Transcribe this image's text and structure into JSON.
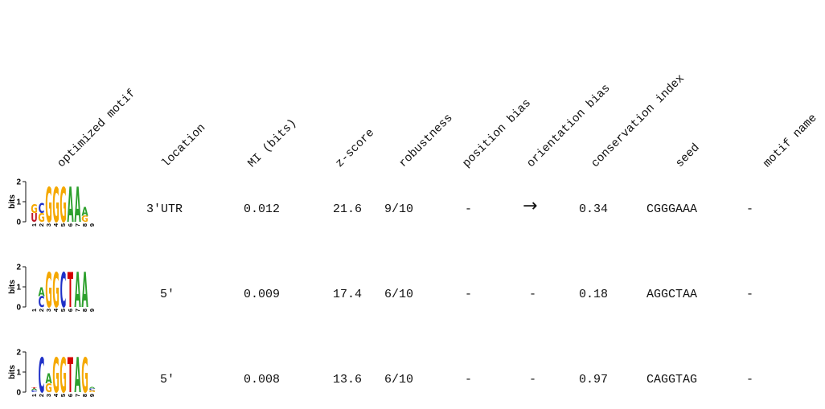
{
  "headers": [
    "optimized motif",
    "location",
    "MI (bits)",
    "z-score",
    "robustness",
    "position bias",
    "orientation bias",
    "conservation index",
    "seed",
    "motif name"
  ],
  "logo_axis": {
    "ylabel": "bits",
    "ticks": [
      "2",
      "1",
      "0"
    ]
  },
  "nucleotide_colors": {
    "A": "#2ca02c",
    "C": "#1f30c8",
    "G": "#f5a800",
    "T": "#d40000",
    "U": "#c0182a"
  },
  "rows": [
    {
      "location": "3'UTR",
      "mi": "0.012",
      "zscore": "21.6",
      "robustness": "9/10",
      "position_bias": "-",
      "orientation_bias": "→",
      "conservation": "0.34",
      "seed": "CGGGAAA",
      "motif_name": "-",
      "logo": [
        [
          {
            "b": "U",
            "h": 0.45
          },
          {
            "b": "G",
            "h": 0.45
          }
        ],
        [
          {
            "b": "G",
            "h": 0.45
          },
          {
            "b": "C",
            "h": 0.5
          }
        ],
        [
          {
            "b": "G",
            "h": 1.75
          }
        ],
        [
          {
            "b": "G",
            "h": 1.75
          }
        ],
        [
          {
            "b": "G",
            "h": 1.75
          }
        ],
        [
          {
            "b": "A",
            "h": 1.75
          }
        ],
        [
          {
            "b": "A",
            "h": 1.75
          }
        ],
        [
          {
            "b": "G",
            "h": 0.3
          },
          {
            "b": "A",
            "h": 0.45
          }
        ],
        []
      ],
      "positions": [
        "1",
        "2",
        "3",
        "4",
        "5",
        "6",
        "7",
        "8",
        "9"
      ]
    },
    {
      "location": "5'",
      "mi": "0.009",
      "zscore": "17.4",
      "robustness": "6/10",
      "position_bias": "-",
      "orientation_bias": "-",
      "conservation": "0.18",
      "seed": "AGGCTAA",
      "motif_name": "-",
      "logo": [
        [],
        [
          {
            "b": "C",
            "h": 0.55
          },
          {
            "b": "A",
            "h": 0.45
          }
        ],
        [
          {
            "b": "G",
            "h": 1.75
          }
        ],
        [
          {
            "b": "G",
            "h": 1.75
          }
        ],
        [
          {
            "b": "C",
            "h": 1.75
          }
        ],
        [
          {
            "b": "T",
            "h": 1.75
          }
        ],
        [
          {
            "b": "A",
            "h": 1.75
          }
        ],
        [
          {
            "b": "A",
            "h": 1.75
          }
        ],
        []
      ],
      "positions": [
        "1",
        "2",
        "3",
        "4",
        "5",
        "6",
        "7",
        "8",
        "9"
      ]
    },
    {
      "location": "5'",
      "mi": "0.008",
      "zscore": "13.6",
      "robustness": "6/10",
      "position_bias": "-",
      "orientation_bias": "-",
      "conservation": "0.97",
      "seed": "CAGGTAG",
      "motif_name": "-",
      "logo": [
        [
          {
            "b": "C",
            "h": 0.1
          },
          {
            "b": "A",
            "h": 0.08
          },
          {
            "b": "T",
            "h": 0.06
          }
        ],
        [
          {
            "b": "C",
            "h": 1.75
          }
        ],
        [
          {
            "b": "G",
            "h": 0.45
          },
          {
            "b": "A",
            "h": 0.5
          }
        ],
        [
          {
            "b": "G",
            "h": 1.75
          }
        ],
        [
          {
            "b": "G",
            "h": 1.75
          }
        ],
        [
          {
            "b": "T",
            "h": 1.75
          }
        ],
        [
          {
            "b": "A",
            "h": 1.75
          }
        ],
        [
          {
            "b": "G",
            "h": 1.75
          }
        ],
        [
          {
            "b": "G",
            "h": 0.1
          },
          {
            "b": "C",
            "h": 0.08
          },
          {
            "b": "A",
            "h": 0.08
          }
        ]
      ],
      "positions": [
        "1",
        "2",
        "3",
        "4",
        "5",
        "6",
        "7",
        "8",
        "9"
      ]
    }
  ]
}
